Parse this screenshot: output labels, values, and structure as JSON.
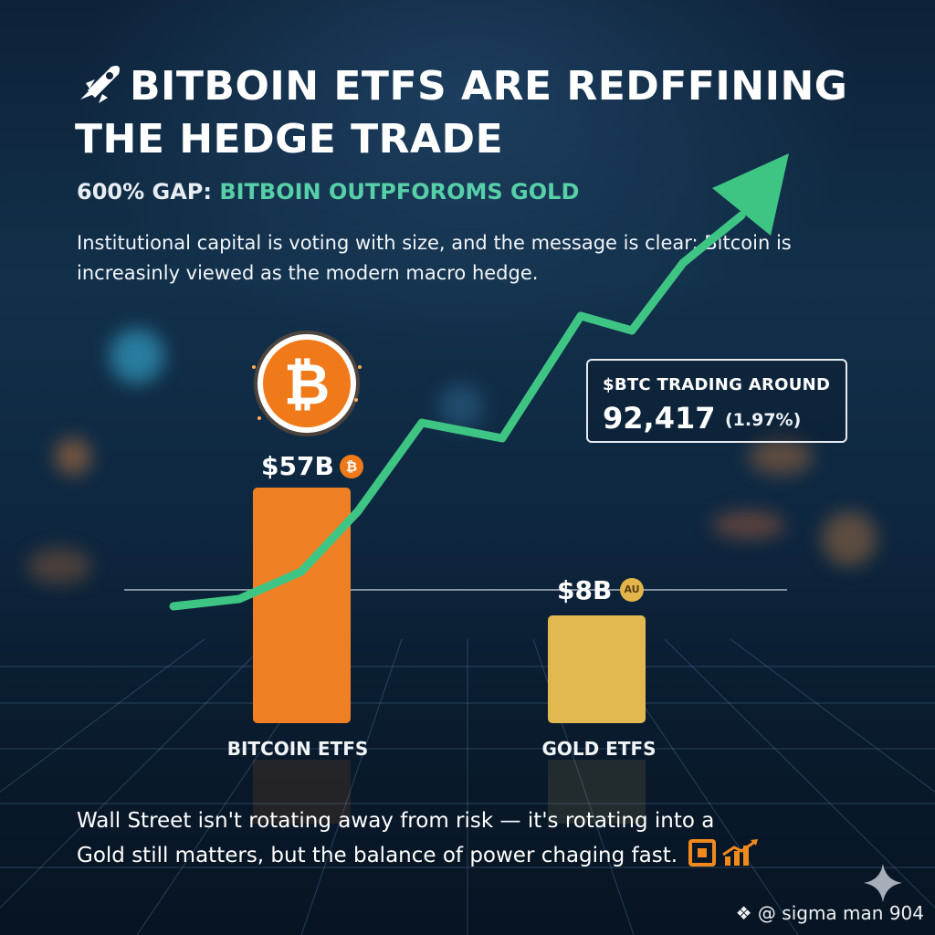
{
  "headline": {
    "title": "BITBOIN ETFS ARE REDFFINING THE HEDGE TRADE",
    "icon": "rocket-icon",
    "subtitle_prefix": "600% GAP: ",
    "subtitle_accent": "BITBOIN OUTPFOROMS GOLD",
    "intro": "Institutional capital is voting with size, and the message is clear: Bitcoin is increasinly viewed as the modern macro hedge."
  },
  "price_box": {
    "label": "$BTC TRADING AROUND",
    "price": "92,417",
    "change": "(1.97%)"
  },
  "chart_data": {
    "type": "bar",
    "categories": [
      "BITCOIN ETFS",
      "GOLD ETFS"
    ],
    "values": [
      57,
      8
    ],
    "value_labels": [
      "$57B",
      "$8B"
    ],
    "unit": "$B",
    "coin_badges": [
      "₿",
      "AU"
    ],
    "colors": [
      "#ef7f24",
      "#e2b850"
    ],
    "trend_line_color": "#3ec583",
    "grid": false,
    "legend": "none"
  },
  "footer": {
    "line1": "Wall Street isn't rotating away from risk — it's rotating into a",
    "line2": "Gold still matters, but the balance of power chaging fast."
  },
  "watermark": {
    "text": "@ sigma man 904"
  }
}
